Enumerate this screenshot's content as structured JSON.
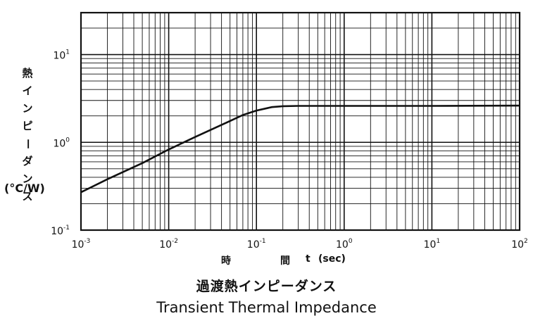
{
  "chart_data": {
    "type": "line",
    "title": "過渡熱インピーダンス",
    "subtitle": "Transient Thermal Impedance",
    "ylabel": "熱インピーダンス",
    "yunit": "(°C/W)",
    "xlabel_parts": [
      "時",
      "間",
      "t",
      "(sec)"
    ],
    "x_scale": "log",
    "y_scale": "log",
    "xlim": [
      0.001,
      100
    ],
    "ylim": [
      0.1,
      30
    ],
    "grid": true,
    "x_ticks": [
      {
        "base": "10",
        "exp": "-3"
      },
      {
        "base": "10",
        "exp": "-2"
      },
      {
        "base": "10",
        "exp": "-1"
      },
      {
        "base": "10",
        "exp": "0"
      },
      {
        "base": "10",
        "exp": "1"
      },
      {
        "base": "10",
        "exp": "2"
      }
    ],
    "y_ticks": [
      {
        "base": "10",
        "exp": "-1"
      },
      {
        "base": "10",
        "exp": "0"
      },
      {
        "base": "10",
        "exp": "1"
      }
    ],
    "series": [
      {
        "x": [
          0.001,
          0.002,
          0.005,
          0.01,
          0.02,
          0.05,
          0.07,
          0.1,
          0.15,
          0.2,
          0.3,
          1,
          10,
          100
        ],
        "y": [
          0.27,
          0.38,
          0.58,
          0.83,
          1.15,
          1.75,
          2.05,
          2.3,
          2.52,
          2.58,
          2.6,
          2.6,
          2.6,
          2.62
        ]
      }
    ]
  }
}
